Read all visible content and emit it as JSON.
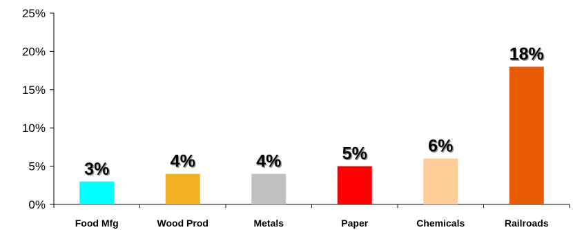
{
  "chart_data": {
    "type": "bar",
    "title": "",
    "xlabel": "",
    "ylabel": "",
    "categories": [
      "Food Mfg",
      "Wood Prod",
      "Metals",
      "Paper",
      "Chemicals",
      "Railroads"
    ],
    "values": [
      3,
      4,
      4,
      5,
      6,
      18
    ],
    "data_labels": [
      "3%",
      "4%",
      "4%",
      "5%",
      "6%",
      "18%"
    ],
    "colors": [
      "#00ffff",
      "#f0b020",
      "#c0c0c0",
      "#ff0000",
      "#ffcc99",
      "#e85d04"
    ],
    "ylim": [
      0,
      25
    ],
    "yticks": [
      0,
      5,
      10,
      15,
      20,
      25
    ],
    "ytick_labels": [
      "0%",
      "5%",
      "10%",
      "15%",
      "20%",
      "25%"
    ],
    "grid": false,
    "legend": "none"
  }
}
